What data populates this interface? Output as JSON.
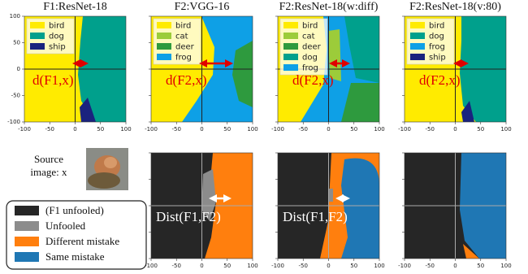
{
  "axes": {
    "xlim": [
      -100,
      100
    ],
    "ylim": [
      -100,
      100
    ],
    "xticks": [
      -100,
      -50,
      0,
      50,
      100
    ],
    "yticks": [
      100,
      50,
      0,
      -50,
      -100
    ]
  },
  "top_row": [
    {
      "title": "F1:ResNet-18",
      "annotation": "d(F1,x)",
      "legend": [
        {
          "name": "bird",
          "color": "#ffeb00"
        },
        {
          "name": "dog",
          "color": "#00a08c"
        },
        {
          "name": "ship",
          "color": "#1a237e"
        }
      ]
    },
    {
      "title": "F2:VGG-16",
      "annotation": "d(F2,x)",
      "legend": [
        {
          "name": "bird",
          "color": "#ffeb00"
        },
        {
          "name": "cat",
          "color": "#9ccc3a"
        },
        {
          "name": "deer",
          "color": "#2e9a3e"
        },
        {
          "name": "frog",
          "color": "#0ea0e6"
        }
      ]
    },
    {
      "title": "F2:ResNet-18(w:diff)",
      "annotation": "d(F2,x)",
      "legend": [
        {
          "name": "bird",
          "color": "#ffeb00"
        },
        {
          "name": "cat",
          "color": "#9ccc3a"
        },
        {
          "name": "deer",
          "color": "#2e9a3e"
        },
        {
          "name": "dog",
          "color": "#00a08c"
        },
        {
          "name": "frog",
          "color": "#0ea0e6"
        }
      ]
    },
    {
      "title": "F2:ResNet-18(v:80)",
      "annotation": "d(F2,x)",
      "legend": [
        {
          "name": "bird",
          "color": "#ffeb00"
        },
        {
          "name": "dog",
          "color": "#00a08c"
        },
        {
          "name": "frog",
          "color": "#0ea0e6"
        },
        {
          "name": "ship",
          "color": "#1a237e"
        }
      ]
    }
  ],
  "source_label": [
    "Source",
    "image: x"
  ],
  "bottom_legend": [
    {
      "name": "(F1 unfooled)",
      "color": "#262626"
    },
    {
      "name": "Unfooled",
      "color": "#8c8c8c"
    },
    {
      "name": "Different mistake",
      "color": "#ff7f0e"
    },
    {
      "name": "Same mistake",
      "color": "#1f77b4"
    }
  ],
  "bottom_annotations": [
    "Dist(F1,F2)",
    "Dist(F1,F2)"
  ]
}
